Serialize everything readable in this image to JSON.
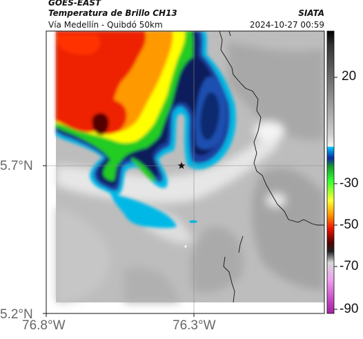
{
  "header": {
    "satellite": "GOES-EAST",
    "product": "Temperatura de Brillo CH13",
    "route": "Vía Medellín - Quibdó 50km",
    "brand": "SIATA",
    "timestamp": "2024-10-27 00:59"
  },
  "map": {
    "lon_ticks": [
      "76.8°W",
      "76.3°W"
    ],
    "lat_ticks": [
      "5.7°N",
      "5.2°N"
    ],
    "marker": "star",
    "colors": {
      "warm_gray": "#b8b8b8",
      "cloud_white": "#f2f2f2",
      "cyan": "#00b8e6",
      "blue": "#1a3fa0",
      "navy": "#0a1a5a",
      "green": "#22cc22",
      "yellow": "#ffff00",
      "orange": "#ff9900",
      "red": "#ee2200",
      "dark_red": "#550000"
    }
  },
  "colorbar": {
    "labels": [
      "20",
      "-30",
      "-50",
      "-70",
      "-90"
    ],
    "unit_values": [
      20,
      -30,
      -50,
      -70,
      -90
    ]
  }
}
